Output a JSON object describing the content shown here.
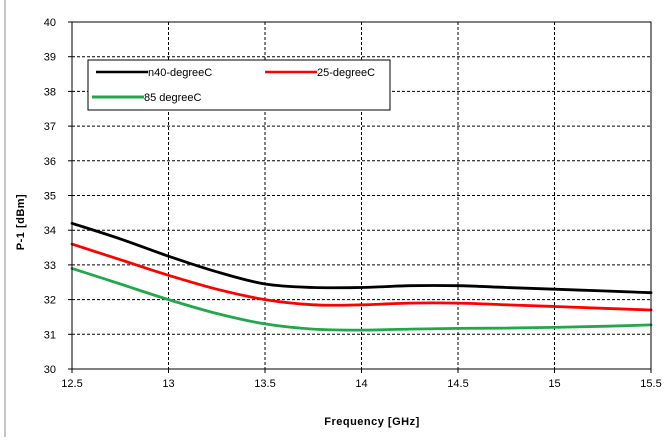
{
  "chart_data": {
    "type": "line",
    "title": "",
    "xlabel": "Frequency  [GHz]",
    "ylabel": "P-1 [dBm]",
    "xlim": [
      12.5,
      15.5
    ],
    "ylim": [
      30,
      40
    ],
    "xticks": [
      12.5,
      13,
      13.5,
      14,
      14.5,
      15,
      15.5
    ],
    "xtick_labels": [
      "12.5",
      "13",
      "13.5",
      "14",
      "14.5",
      "15",
      "15.5"
    ],
    "yticks": [
      30,
      31,
      32,
      33,
      34,
      35,
      36,
      37,
      38,
      39,
      40
    ],
    "ytick_labels": [
      "30",
      "31",
      "32",
      "33",
      "34",
      "35",
      "36",
      "37",
      "38",
      "39",
      "40"
    ],
    "grid": true,
    "legend_position": "top-left",
    "series": [
      {
        "name": "n40-degreeC",
        "color": "#000000",
        "x": [
          12.5,
          12.75,
          13.0,
          13.25,
          13.5,
          13.75,
          14.0,
          14.25,
          14.5,
          14.75,
          15.0,
          15.25,
          15.5
        ],
        "y": [
          34.2,
          33.75,
          33.25,
          32.8,
          32.45,
          32.35,
          32.35,
          32.4,
          32.4,
          32.35,
          32.3,
          32.25,
          32.2
        ]
      },
      {
        "name": "25-degreeC",
        "color": "#ff0000",
        "x": [
          12.5,
          12.75,
          13.0,
          13.25,
          13.5,
          13.75,
          14.0,
          14.25,
          14.5,
          14.75,
          15.0,
          15.25,
          15.5
        ],
        "y": [
          33.6,
          33.15,
          32.7,
          32.3,
          32.0,
          31.85,
          31.85,
          31.9,
          31.9,
          31.85,
          31.8,
          31.75,
          31.7
        ]
      },
      {
        "name": "85 degreeC",
        "color": "#22a84a",
        "x": [
          12.5,
          12.75,
          13.0,
          13.25,
          13.5,
          13.75,
          14.0,
          14.25,
          14.5,
          14.75,
          15.0,
          15.25,
          15.5
        ],
        "y": [
          32.9,
          32.45,
          32.0,
          31.6,
          31.3,
          31.15,
          31.12,
          31.15,
          31.17,
          31.18,
          31.2,
          31.23,
          31.27
        ]
      }
    ]
  }
}
